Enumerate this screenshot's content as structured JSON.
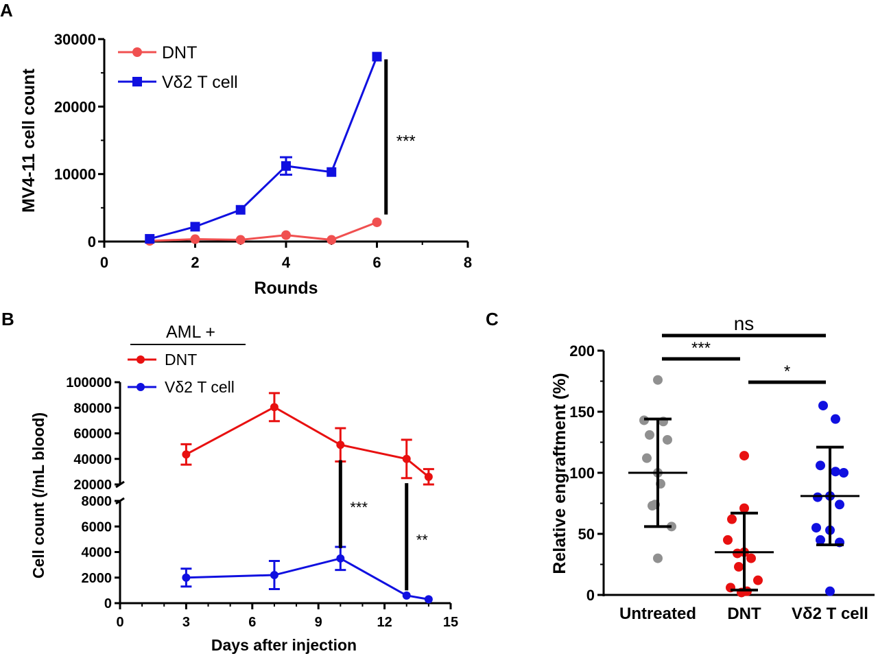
{
  "colors": {
    "dnt_a": "#F05050",
    "dnt_b": "#E81010",
    "vd2": "#1010E0",
    "untreated": "#909090",
    "axis": "#000000"
  },
  "chart_data": [
    {
      "panel": "A",
      "type": "line",
      "xlabel": "Rounds",
      "ylabel": "MV4-11 cell count",
      "xlim": [
        0,
        8
      ],
      "ylim": [
        0,
        30000
      ],
      "xticks": [
        "0",
        "2",
        "4",
        "6",
        "8"
      ],
      "yticks": [
        "0",
        "10000",
        "20000",
        "30000"
      ],
      "legend_position": "top-left",
      "series": [
        {
          "name": "DNT",
          "marker": "circle",
          "color": "#F05050",
          "x": [
            1,
            2,
            3,
            4,
            5,
            6
          ],
          "y": [
            100,
            350,
            250,
            950,
            250,
            2850
          ],
          "err": [
            0,
            0,
            0,
            0,
            0,
            0
          ]
        },
        {
          "name": "Vδ2 T cell",
          "marker": "square",
          "color": "#1010E0",
          "x": [
            1,
            2,
            3,
            4,
            5,
            6
          ],
          "y": [
            400,
            2200,
            4700,
            11200,
            10300,
            27400
          ],
          "err": [
            0,
            0,
            0,
            1300,
            0,
            0
          ]
        }
      ],
      "annotations": [
        {
          "text": "***",
          "x": 6.2,
          "y_from": 4000,
          "y_to": 27000
        }
      ]
    },
    {
      "panel": "B",
      "type": "line",
      "xlabel": "Days after injection",
      "ylabel": "Cell count (/mL blood)",
      "xlim": [
        0,
        15
      ],
      "xticks": [
        "0",
        "3",
        "6",
        "9",
        "12",
        "15"
      ],
      "axis_break": true,
      "upper_ylim": [
        20000,
        100000
      ],
      "upper_yticks": [
        "20000",
        "40000",
        "60000",
        "80000",
        "100000"
      ],
      "lower_ylim": [
        0,
        8000
      ],
      "lower_yticks": [
        "0",
        "2000",
        "4000",
        "6000",
        "8000"
      ],
      "legend_title": "AML +",
      "legend_position": "top-left",
      "series": [
        {
          "name": "DNT",
          "marker": "circle",
          "color": "#E81010",
          "x": [
            3,
            7,
            10,
            13,
            14
          ],
          "y": [
            43500,
            80500,
            51000,
            40000,
            26000
          ],
          "err": [
            8000,
            11000,
            13000,
            15000,
            6000
          ]
        },
        {
          "name": "Vδ2 T cell",
          "marker": "circle",
          "color": "#1010E0",
          "x": [
            3,
            7,
            10,
            13,
            14
          ],
          "y": [
            2000,
            2200,
            3500,
            600,
            300
          ],
          "err": [
            700,
            1100,
            900,
            0,
            0
          ]
        }
      ],
      "annotations": [
        {
          "text": "***",
          "x": 10,
          "y_from": 4300,
          "y_to": 39000
        },
        {
          "text": "**",
          "x": 13,
          "y_from": 1000,
          "y_to": 21000
        }
      ]
    },
    {
      "panel": "C",
      "type": "scatter",
      "ylabel": "Relative engraftment (%)",
      "categories": [
        "Untreated",
        "DNT",
        "Vδ2 T cell"
      ],
      "ylim": [
        0,
        200
      ],
      "yticks": [
        "0",
        "50",
        "100",
        "150",
        "200"
      ],
      "groups": [
        {
          "category": "Untreated",
          "color": "#909090",
          "mean": 100,
          "sd_low": 56,
          "sd_high": 144,
          "points": [
            176,
            143,
            142,
            131,
            127,
            112,
            100,
            91,
            74,
            73,
            56,
            30
          ]
        },
        {
          "category": "DNT",
          "color": "#E81010",
          "mean": 35,
          "sd_low": 4,
          "sd_high": 67,
          "points": [
            114,
            71,
            62,
            45,
            35,
            34,
            30,
            23,
            12,
            6,
            3,
            2
          ]
        },
        {
          "category": "Vδ2 T cell",
          "color": "#1010E0",
          "mean": 81,
          "sd_low": 41,
          "sd_high": 121,
          "points": [
            155,
            144,
            106,
            101,
            100,
            81,
            80,
            74,
            55,
            53,
            45,
            43,
            3
          ]
        }
      ],
      "comparisons": [
        {
          "text": "ns",
          "from": 0,
          "to": 2
        },
        {
          "text": "***",
          "from": 0,
          "to": 1
        },
        {
          "text": "*",
          "from": 1,
          "to": 2
        }
      ]
    }
  ],
  "panels": {
    "a_label": "A",
    "b_label": "B",
    "c_label": "C"
  }
}
